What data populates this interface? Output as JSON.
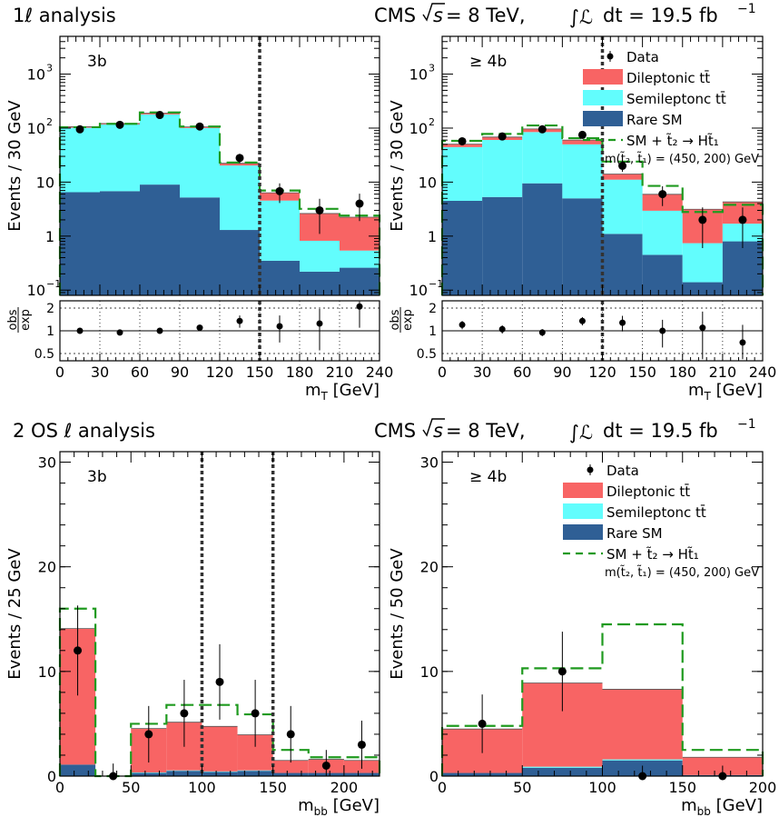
{
  "headers": {
    "top_left": "1ℓ analysis",
    "bottom_left": "2 OS ℓ analysis",
    "cms_prefix": "CMS ",
    "cms_sqrt_s": "s",
    "cms_energy": " = 8 TeV,  ",
    "cms_lumi": "dt = 19.5 fb",
    "cms_lumi_exp": "−1"
  },
  "legend": {
    "data": "Data",
    "dilep": "Dileptonic tt̄",
    "semi": "Semileptonc tt̄",
    "rare": "Rare SM",
    "signal": "SM + t̃₂ → Ht̃₁",
    "mass": "m(t̃₂, t̃₁) = (450, 200) GeV"
  },
  "colors": {
    "dilep": "#f86464",
    "semi": "#62fdfd",
    "rare": "#2f5f95",
    "signal": "#1f9a1f",
    "cut": "#333333"
  },
  "chart_data": [
    {
      "type": "bar",
      "stacked": true,
      "log_y": true,
      "panel_label": "3b",
      "xlabel": "m",
      "xlabel_sub": "T",
      "xlabel_unit": " [GeV]",
      "ylabel": "Events / 30 GeV",
      "xlim": [
        0,
        240
      ],
      "ylim": [
        0.08,
        5000
      ],
      "x_ticks": [
        0,
        30,
        60,
        90,
        120,
        150,
        180,
        210,
        240
      ],
      "bin_edges": [
        0,
        30,
        60,
        90,
        120,
        150,
        180,
        210,
        240
      ],
      "rare": [
        6.5,
        6.8,
        9.0,
        5.2,
        1.3,
        0.35,
        0.22,
        0.26
      ],
      "semi": [
        95,
        110,
        170,
        95,
        19,
        4.2,
        0.6,
        0.28
      ],
      "dilep": [
        5,
        5,
        10,
        5,
        2.0,
        1.8,
        1.8,
        1.7
      ],
      "signal": [
        104,
        120,
        195,
        107,
        23,
        7.0,
        3.2,
        2.4
      ],
      "data": [
        95,
        115,
        175,
        107,
        28,
        6.8,
        3.0,
        4.0
      ],
      "data_err": [
        10,
        11,
        13,
        10,
        5.5,
        2.7,
        1.9,
        2.1
      ],
      "cuts": [
        150
      ],
      "ratio_ylabel_top": "obs",
      "ratio_ylabel_bottom": "exp",
      "ratio_ticks": [
        "0.5",
        "1",
        "2"
      ],
      "ratio": [
        1.0,
        0.95,
        1.0,
        1.1,
        1.35,
        1.15,
        1.25,
        2.1
      ],
      "ratio_err": [
        0.08,
        0.08,
        0.07,
        0.1,
        0.25,
        0.45,
        0.7,
        1.0
      ]
    },
    {
      "type": "bar",
      "stacked": true,
      "log_y": true,
      "panel_label": "≥ 4b",
      "xlabel": "m",
      "xlabel_sub": "T",
      "xlabel_unit": " [GeV]",
      "ylabel": "Events / 30 GeV",
      "xlim": [
        0,
        240
      ],
      "ylim": [
        0.08,
        5000
      ],
      "x_ticks": [
        0,
        30,
        60,
        90,
        120,
        150,
        180,
        210,
        240
      ],
      "bin_edges": [
        0,
        30,
        60,
        90,
        120,
        150,
        180,
        210,
        240
      ],
      "rare": [
        4.5,
        5.3,
        9.5,
        5.0,
        1.1,
        0.45,
        0.14,
        0.8
      ],
      "semi": [
        40,
        55,
        75,
        45,
        10,
        2.5,
        0.6,
        0.9
      ],
      "dilep": [
        6,
        8,
        12,
        10,
        3,
        3,
        2.4,
        2.6
      ],
      "signal": [
        58,
        78,
        112,
        65,
        24,
        8.5,
        2.8,
        3.8
      ],
      "data": [
        57,
        70,
        95,
        75,
        20,
        6.0,
        2.0,
        2.0
      ],
      "data_err": [
        7.5,
        8.3,
        9.7,
        8.6,
        4.5,
        2.4,
        1.4,
        1.4
      ],
      "cuts": [
        120
      ],
      "ratio_ylabel_top": "obs",
      "ratio_ylabel_bottom": "exp",
      "ratio_ticks": [
        "0.5",
        "1",
        "2"
      ],
      "ratio": [
        1.2,
        1.05,
        0.95,
        1.35,
        1.28,
        1.0,
        1.1,
        0.7
      ],
      "ratio_err": [
        0.15,
        0.13,
        0.1,
        0.17,
        0.3,
        0.4,
        0.7,
        0.5
      ]
    },
    {
      "type": "bar",
      "stacked": true,
      "log_y": false,
      "panel_label": "3b",
      "xlabel": "m",
      "xlabel_sub": "bb",
      "xlabel_unit": " [GeV]",
      "ylabel": "Events / 25 GeV",
      "xlim": [
        0,
        225
      ],
      "ylim": [
        0,
        31
      ],
      "x_ticks": [
        0,
        50,
        100,
        150,
        200
      ],
      "y_ticks": [
        0,
        10,
        20,
        30
      ],
      "bin_edges": [
        0,
        25,
        50,
        75,
        100,
        125,
        150,
        175,
        200,
        225
      ],
      "rare": [
        1.1,
        0,
        0.3,
        0.5,
        0.4,
        0.5,
        0.3,
        0.3,
        0.3
      ],
      "semi": [
        0,
        0,
        0.05,
        0.05,
        0.05,
        0.05,
        0,
        0,
        0
      ],
      "dilep": [
        13,
        0,
        4.2,
        4.6,
        4.3,
        3.4,
        1.2,
        1.3,
        1.2
      ],
      "signal": [
        16,
        0,
        5.0,
        6.8,
        6.8,
        5.9,
        2.5,
        1.8,
        1.8
      ],
      "data_x": [
        12.5,
        37.5,
        62.5,
        87.5,
        112.5,
        137.5,
        162.5,
        187.5,
        212.5
      ],
      "data": [
        12,
        0,
        4,
        6,
        9,
        6,
        4,
        1,
        3
      ],
      "data_err": [
        4.3,
        1.2,
        2.7,
        3.2,
        3.6,
        3.2,
        2.7,
        1.5,
        2.3
      ],
      "cuts": [
        100,
        150
      ]
    },
    {
      "type": "bar",
      "stacked": true,
      "log_y": false,
      "panel_label": "≥ 4b",
      "xlabel": "m",
      "xlabel_sub": "bb",
      "xlabel_unit": " [GeV]",
      "ylabel": "Events / 50 GeV",
      "xlim": [
        0,
        200
      ],
      "ylim": [
        0,
        31
      ],
      "x_ticks": [
        0,
        50,
        100,
        150,
        200
      ],
      "y_ticks": [
        0,
        10,
        20,
        30
      ],
      "bin_edges": [
        0,
        50,
        100,
        150,
        200
      ],
      "rare": [
        0.3,
        0.8,
        1.5,
        0.1
      ],
      "semi": [
        0,
        0.1,
        0.1,
        0
      ],
      "dilep": [
        4.2,
        8.0,
        6.7,
        1.7
      ],
      "signal": [
        4.8,
        10.3,
        14.5,
        2.5
      ],
      "data_x": [
        25,
        75,
        125,
        175
      ],
      "data": [
        5,
        10,
        0,
        0
      ],
      "data_err": [
        2.8,
        3.8,
        1.0,
        1.0
      ],
      "cuts": []
    }
  ]
}
